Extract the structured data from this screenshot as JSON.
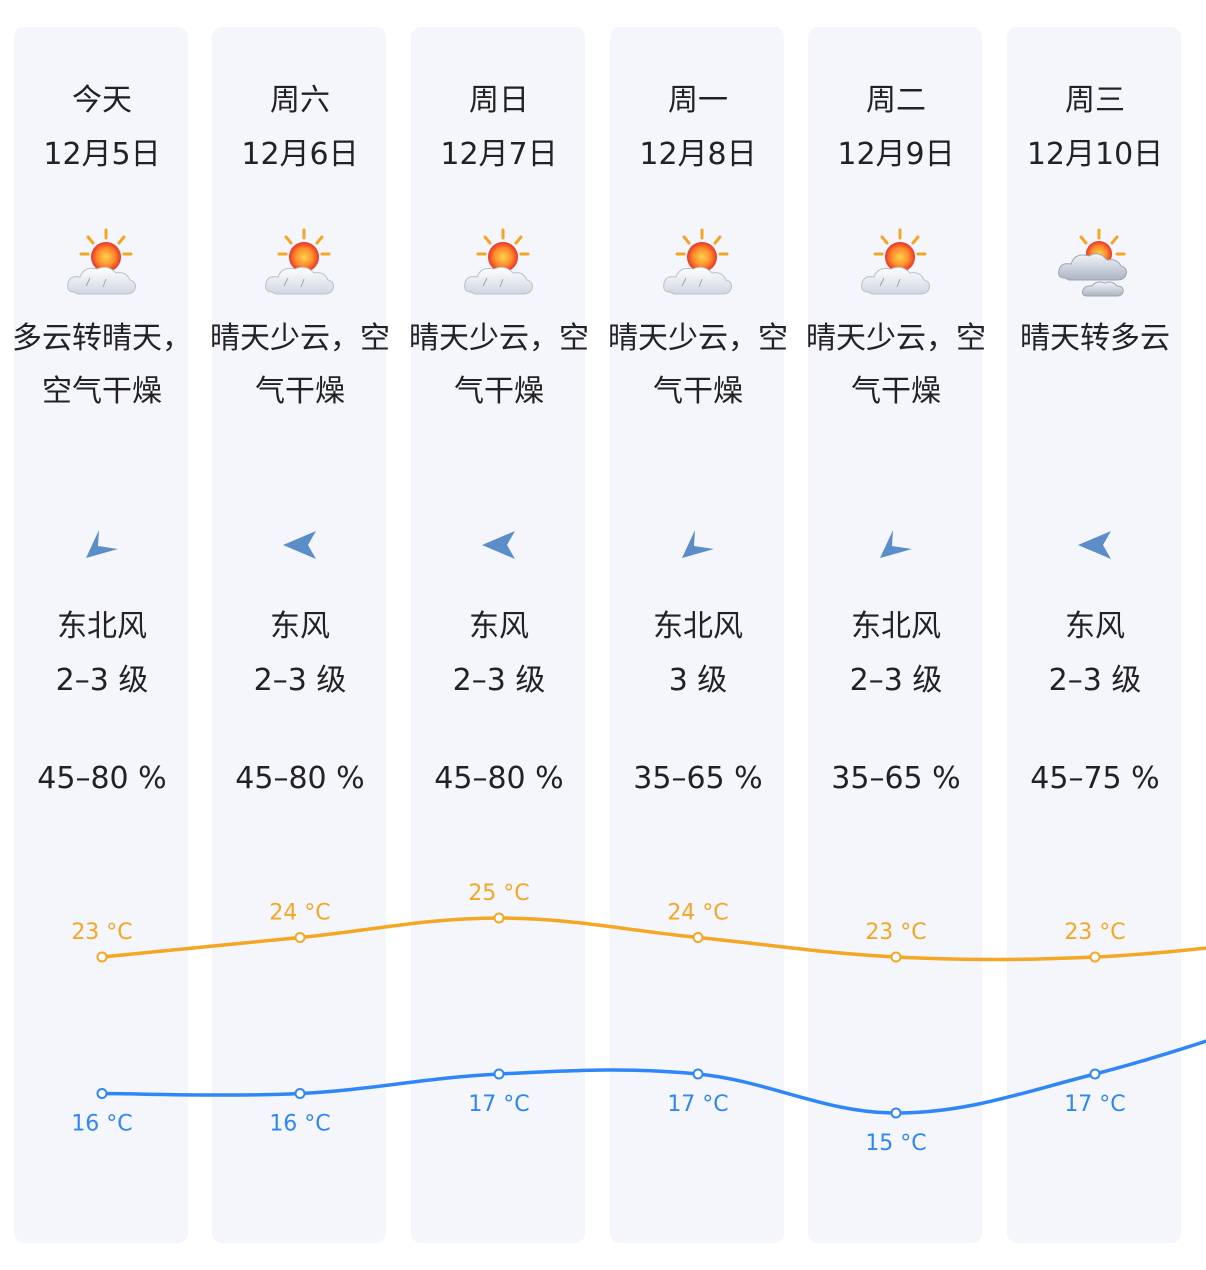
{
  "colors": {
    "high": "#f5a623",
    "low": "#2f86f6",
    "arrow": "#5b8ec9",
    "card": "#f4f6fc"
  },
  "days": [
    {
      "day": "今天",
      "date": "12月5日",
      "icon": "sun-cloud-icon",
      "desc": "多云转晴天，空气干燥",
      "wind_dir": "东北风",
      "wind_level": "2–3 级",
      "wind_arrow": "north-east-arrow-icon",
      "humidity": "45–80 %"
    },
    {
      "day": "周六",
      "date": "12月6日",
      "icon": "sun-cloud-icon",
      "desc": "晴天少云，空气干燥",
      "wind_dir": "东风",
      "wind_level": "2–3 级",
      "wind_arrow": "east-arrow-icon",
      "humidity": "45–80 %"
    },
    {
      "day": "周日",
      "date": "12月7日",
      "icon": "sun-cloud-icon",
      "desc": "晴天少云，空气干燥",
      "wind_dir": "东风",
      "wind_level": "2–3 级",
      "wind_arrow": "east-arrow-icon",
      "humidity": "45–80 %"
    },
    {
      "day": "周一",
      "date": "12月8日",
      "icon": "sun-cloud-icon",
      "desc": "晴天少云，空气干燥",
      "wind_dir": "东北风",
      "wind_level": "3 级",
      "wind_arrow": "north-east-arrow-icon",
      "humidity": "35–65 %"
    },
    {
      "day": "周二",
      "date": "12月9日",
      "icon": "sun-cloud-icon",
      "desc": "晴天少云，空气干燥",
      "wind_dir": "东北风",
      "wind_level": "2–3 级",
      "wind_arrow": "north-east-arrow-icon",
      "humidity": "35–65 %"
    },
    {
      "day": "周三",
      "date": "12月10日",
      "icon": "partly-cloudy-icon",
      "desc": "晴天转多云",
      "wind_dir": "东风",
      "wind_level": "2–3 级",
      "wind_arrow": "east-arrow-icon",
      "humidity": "45–75 %"
    }
  ],
  "chart_data": {
    "type": "line",
    "categories": [
      "今天",
      "周六",
      "周日",
      "周一",
      "周二",
      "周三"
    ],
    "series": [
      {
        "values": [
          23,
          24,
          25,
          24,
          23,
          23
        ],
        "labels": [
          "23 °C",
          "24 °C",
          "25 °C",
          "24 °C",
          "23 °C",
          "23 °C"
        ],
        "color": "#f5a623"
      },
      {
        "values": [
          16,
          16,
          17,
          17,
          15,
          17
        ],
        "labels": [
          "16 °C",
          "16 °C",
          "17 °C",
          "17 °C",
          "15 °C",
          "17 °C"
        ],
        "color": "#2f86f6"
      }
    ]
  }
}
